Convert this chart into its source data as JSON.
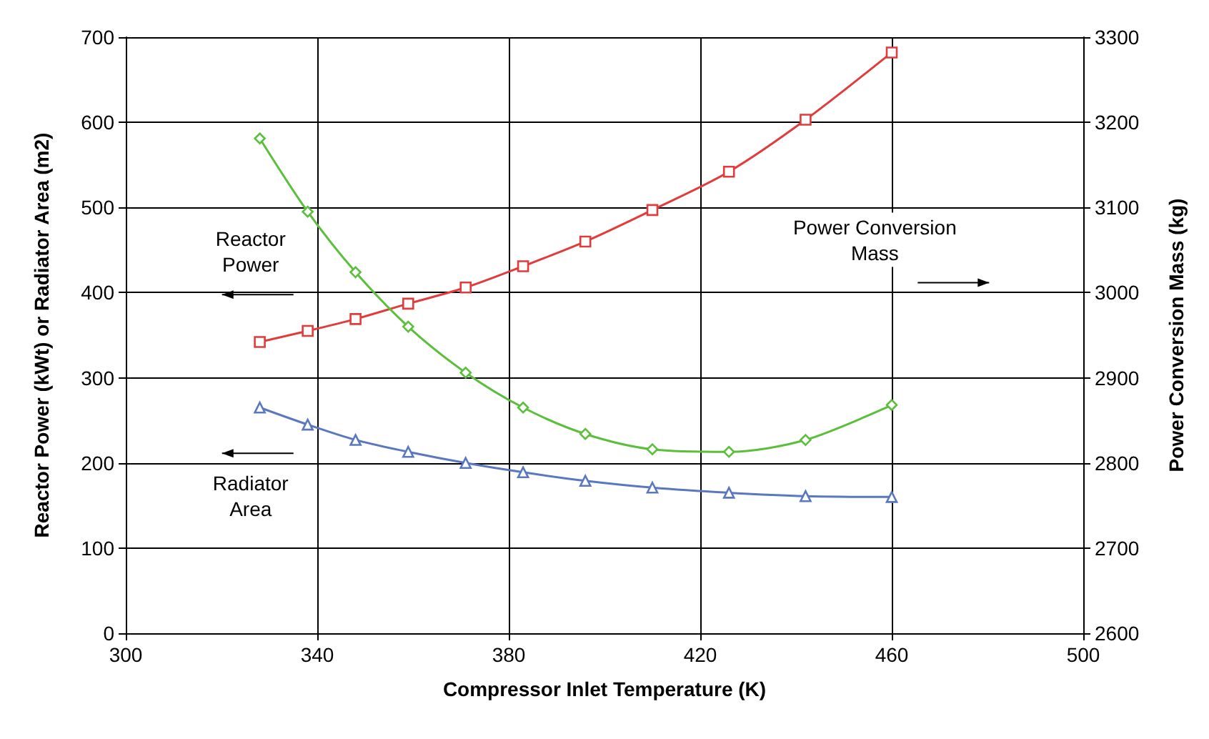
{
  "chart_data": {
    "type": "line",
    "xlabel": "Compressor Inlet Temperature (K)",
    "ylabel": "Reactor Power (kWt) or Radiator Area (m2)",
    "y2label": "Power Conversion Mass (kg)",
    "xlim": [
      300,
      500
    ],
    "xticks": [
      300,
      340,
      380,
      420,
      460,
      500
    ],
    "ylim": [
      0,
      700
    ],
    "yticks": [
      0,
      100,
      200,
      300,
      400,
      500,
      600,
      700
    ],
    "y2lim": [
      2600,
      3300
    ],
    "y2ticks": [
      2600,
      2700,
      2800,
      2900,
      3000,
      3100,
      3200,
      3300
    ],
    "x": [
      328,
      338,
      348,
      359,
      371,
      383,
      396,
      410,
      426,
      442,
      460
    ],
    "series": [
      {
        "color": "#e03c3c",
        "marker": "square",
        "values": [
          342,
          355,
          369,
          387,
          406,
          431,
          460,
          497,
          542,
          603,
          682
        ]
      },
      {
        "color": "#5cbf3c",
        "marker": "diamond",
        "axis": "y2",
        "values": [
          3181,
          3095,
          3024,
          2960,
          2906,
          2865,
          2834,
          2816,
          2813,
          2827,
          2868
        ]
      },
      {
        "color": "#5a78c0",
        "marker": "triangle",
        "values": [
          265,
          245,
          227,
          213,
          200,
          189,
          179,
          171,
          165,
          161,
          160
        ]
      }
    ],
    "annotations": [
      "Reactor\nPower",
      "Radiator\nArea",
      "Power Conversion\nMass"
    ],
    "grid": true
  }
}
